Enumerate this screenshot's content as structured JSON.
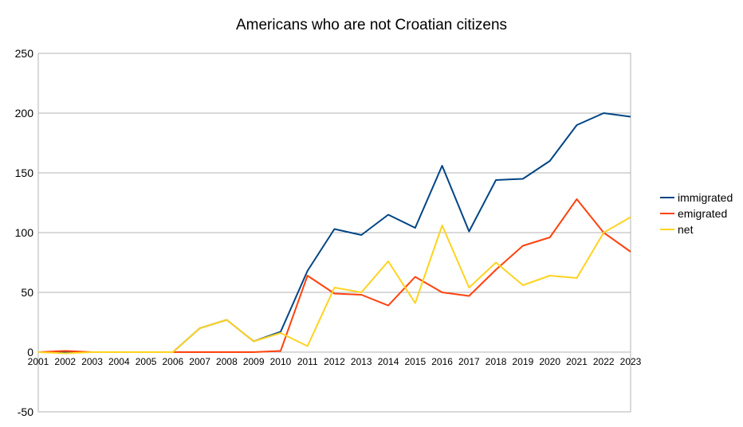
{
  "chart_data": {
    "type": "line",
    "title": "Americans who are not Croatian citizens",
    "xlabel": "",
    "ylabel": "",
    "ylim": [
      -50,
      250
    ],
    "yticks": [
      250,
      200,
      150,
      100,
      50,
      0,
      -50
    ],
    "categories": [
      "2001",
      "2002",
      "2003",
      "2004",
      "2005",
      "2006",
      "2007",
      "2008",
      "2009",
      "2010",
      "2011",
      "2012",
      "2013",
      "2014",
      "2015",
      "2016",
      "2017",
      "2018",
      "2019",
      "2020",
      "2021",
      "2022",
      "2023"
    ],
    "grid": true,
    "legend_position": "right",
    "series": [
      {
        "name": "immigrated",
        "color": "#004586",
        "values": [
          0,
          0,
          0,
          0,
          0,
          0,
          20,
          27,
          9,
          17,
          68,
          103,
          98,
          115,
          104,
          156,
          101,
          144,
          145,
          160,
          190,
          200,
          197
        ]
      },
      {
        "name": "emigrated",
        "color": "#ff420e",
        "values": [
          0,
          1,
          0,
          0,
          0,
          0,
          0,
          0,
          0,
          1,
          64,
          49,
          48,
          39,
          63,
          50,
          47,
          69,
          89,
          96,
          128,
          100,
          84
        ]
      },
      {
        "name": "net",
        "color": "#ffd320",
        "values": [
          0,
          -1,
          0,
          0,
          0,
          0,
          20,
          27,
          9,
          16,
          5,
          54,
          50,
          76,
          41,
          106,
          54,
          75,
          56,
          64,
          62,
          100,
          113
        ]
      }
    ]
  }
}
